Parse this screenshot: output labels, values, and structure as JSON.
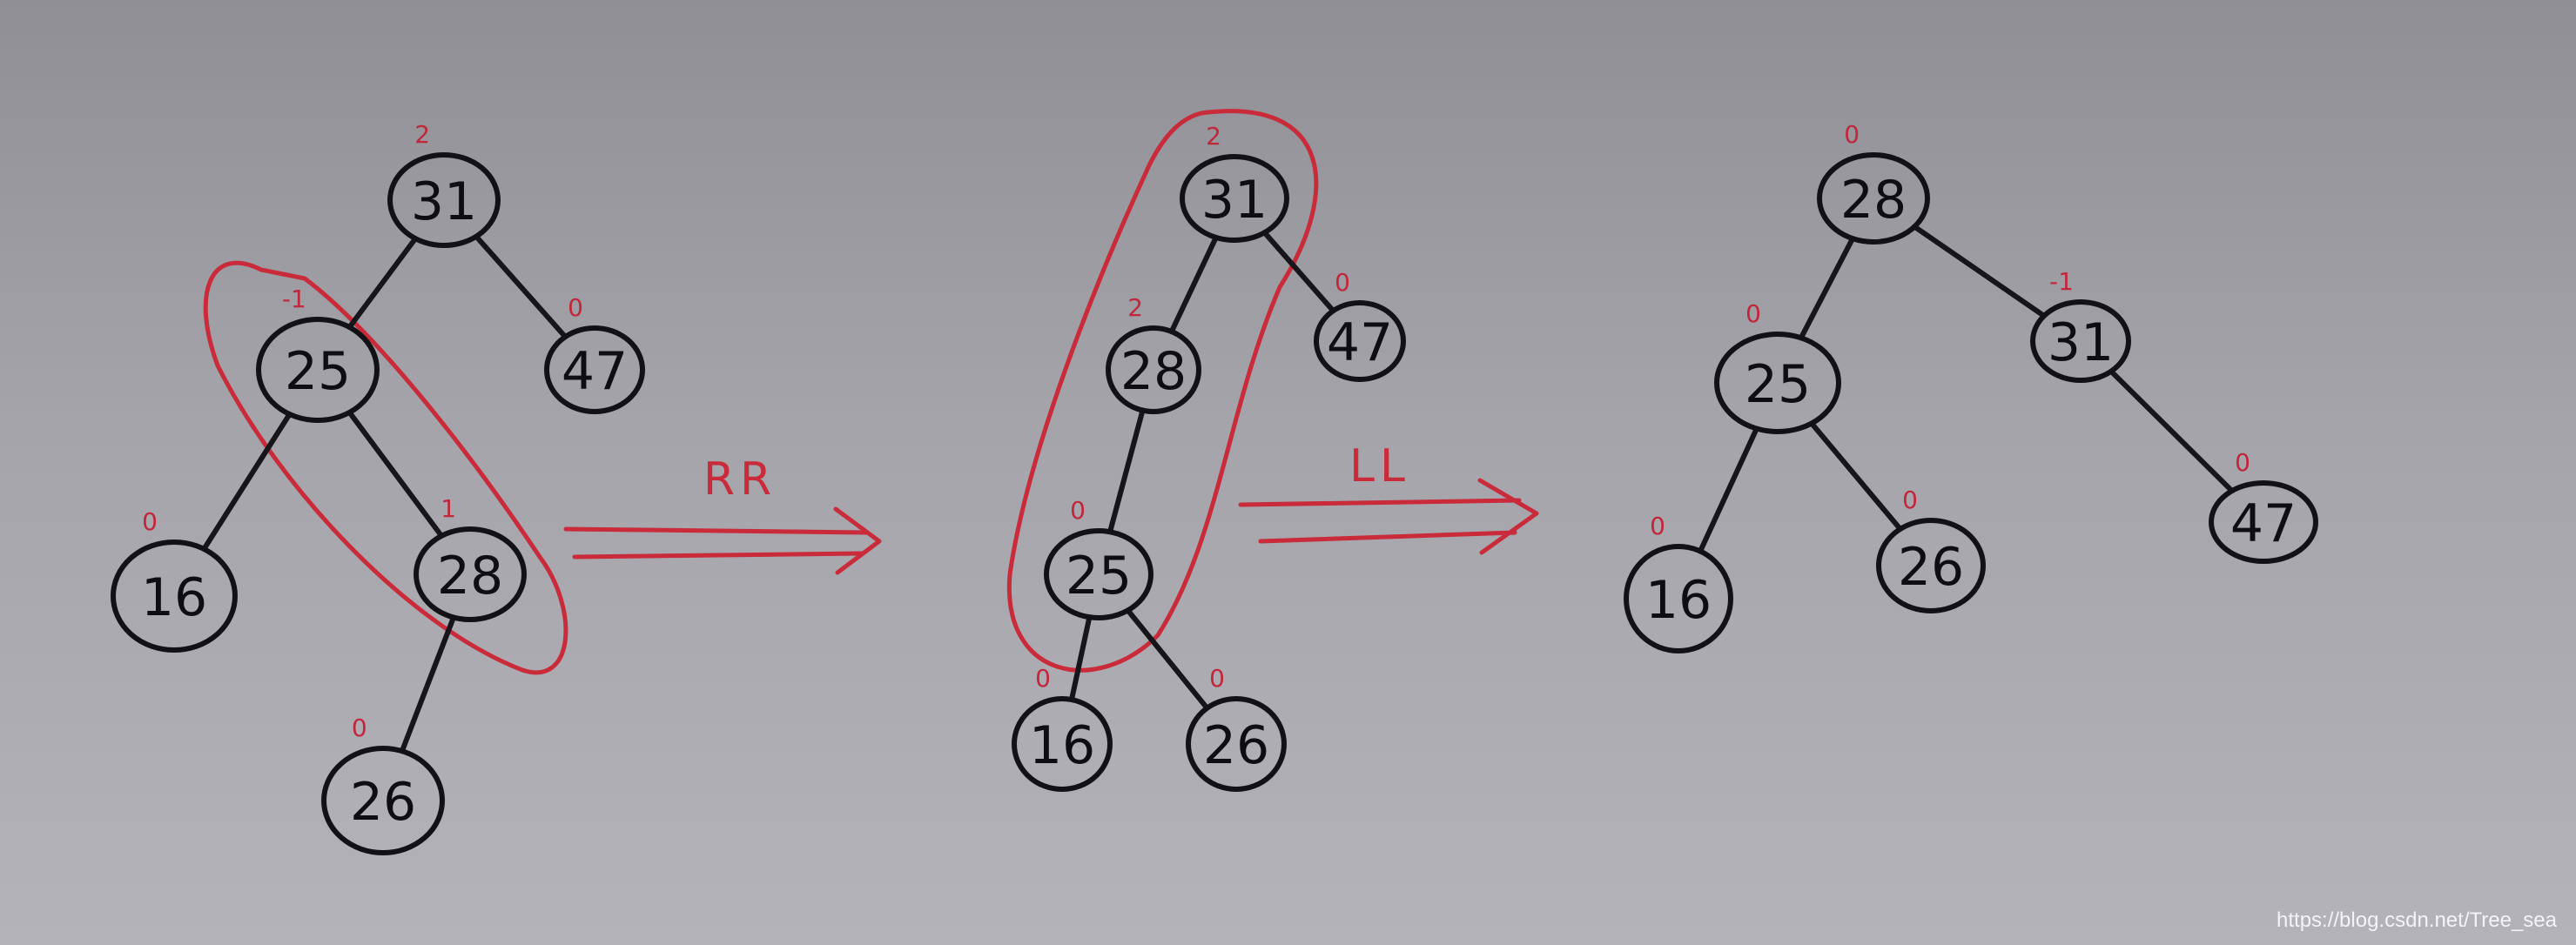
{
  "diagrams": [
    {
      "nodes": [
        {
          "id": "31",
          "label": "31",
          "bf": "2"
        },
        {
          "id": "25",
          "label": "25",
          "bf": "-1"
        },
        {
          "id": "47",
          "label": "47",
          "bf": "0"
        },
        {
          "id": "16",
          "label": "16",
          "bf": "0"
        },
        {
          "id": "28",
          "label": "28",
          "bf": "1"
        },
        {
          "id": "26",
          "label": "26",
          "bf": "0"
        }
      ],
      "edges": [
        [
          "31",
          "25"
        ],
        [
          "31",
          "47"
        ],
        [
          "25",
          "16"
        ],
        [
          "25",
          "28"
        ],
        [
          "28",
          "26"
        ]
      ]
    },
    {
      "nodes": [
        {
          "id": "31",
          "label": "31",
          "bf": "2"
        },
        {
          "id": "28",
          "label": "28",
          "bf": "2"
        },
        {
          "id": "47",
          "label": "47",
          "bf": "0"
        },
        {
          "id": "25",
          "label": "25",
          "bf": "0"
        },
        {
          "id": "16",
          "label": "16",
          "bf": "0"
        },
        {
          "id": "26",
          "label": "26",
          "bf": "0"
        }
      ],
      "edges": [
        [
          "31",
          "28"
        ],
        [
          "31",
          "47"
        ],
        [
          "28",
          "25"
        ],
        [
          "25",
          "16"
        ],
        [
          "25",
          "26"
        ]
      ]
    },
    {
      "nodes": [
        {
          "id": "28",
          "label": "28",
          "bf": "0"
        },
        {
          "id": "25",
          "label": "25",
          "bf": "0"
        },
        {
          "id": "31",
          "label": "31",
          "bf": "-1"
        },
        {
          "id": "16",
          "label": "16",
          "bf": "0"
        },
        {
          "id": "26",
          "label": "26",
          "bf": "0"
        },
        {
          "id": "47",
          "label": "47",
          "bf": "0"
        }
      ],
      "edges": [
        [
          "28",
          "25"
        ],
        [
          "28",
          "31"
        ],
        [
          "25",
          "16"
        ],
        [
          "25",
          "26"
        ],
        [
          "31",
          "47"
        ]
      ]
    }
  ],
  "transitions": [
    {
      "label": "RR"
    },
    {
      "label": "LL"
    }
  ],
  "colors": {
    "ink": "#111116",
    "annotation": "#c92b3a",
    "background": "#a4a4aa"
  },
  "watermark": "https://blog.csdn.net/Tree_sea"
}
